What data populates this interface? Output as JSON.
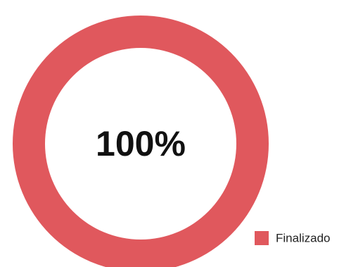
{
  "chart_data": {
    "type": "pie",
    "donut": true,
    "categories": [
      "Finalizado"
    ],
    "values": [
      100
    ],
    "value_labels": [
      "100%"
    ],
    "colors": [
      "#e0585d"
    ],
    "legend": "bottom-right"
  }
}
